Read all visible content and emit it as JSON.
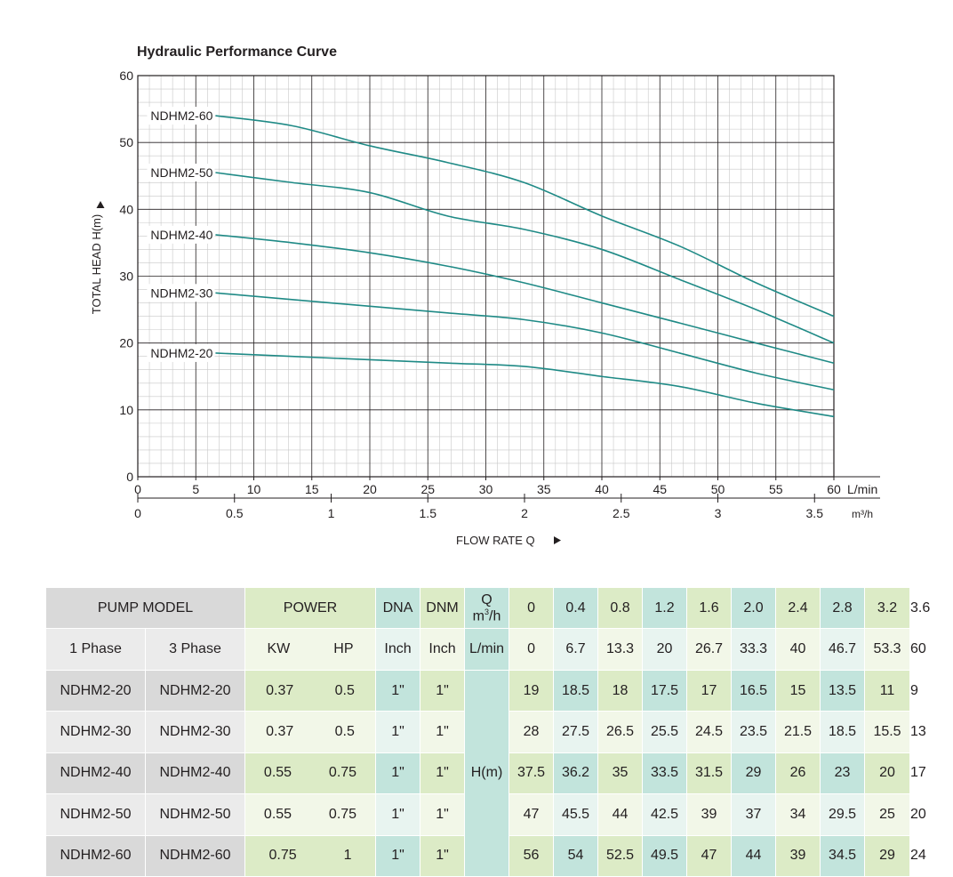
{
  "chart_data": {
    "type": "line",
    "title": "Hydraulic Performance Curve",
    "ylabel": "TOTAL HEAD H(m)",
    "xlabel": "FLOW RATE Q",
    "ylim": [
      0,
      60
    ],
    "xlim": [
      0,
      60
    ],
    "grid": true,
    "x_unit": "L/min",
    "x2_unit": "m³/h",
    "y_ticks": [
      "0",
      "10",
      "20",
      "30",
      "40",
      "50",
      "60"
    ],
    "x_ticks": [
      "0",
      "5",
      "10",
      "15",
      "20",
      "25",
      "30",
      "35",
      "40",
      "45",
      "50",
      "55",
      "60"
    ],
    "x2_ticks": [
      "0",
      "0.5",
      "1",
      "1.5",
      "2",
      "2.5",
      "3",
      "3.5"
    ],
    "x": [
      0,
      6.7,
      13.3,
      20,
      26.7,
      33.3,
      40,
      46.7,
      53.3,
      60
    ],
    "series": [
      {
        "name": "NDHM2-60",
        "values": [
          56,
          54,
          52.5,
          49.5,
          47,
          44,
          39,
          34.5,
          29,
          24
        ]
      },
      {
        "name": "NDHM2-50",
        "values": [
          47,
          45.5,
          44,
          42.5,
          39,
          37,
          34,
          29.5,
          25,
          20
        ]
      },
      {
        "name": "NDHM2-40",
        "values": [
          37.5,
          36.2,
          35,
          33.5,
          31.5,
          29,
          26,
          23,
          20,
          17
        ]
      },
      {
        "name": "NDHM2-30",
        "values": [
          28,
          27.5,
          26.5,
          25.5,
          24.5,
          23.5,
          21.5,
          18.5,
          15.5,
          13
        ]
      },
      {
        "name": "NDHM2-20",
        "values": [
          19,
          18.5,
          18,
          17.5,
          17,
          16.5,
          15,
          13.5,
          11,
          9
        ]
      }
    ],
    "line_color": "#1f8a86"
  },
  "table": {
    "pump_model": "PUMP MODEL",
    "power": "POWER",
    "dna": "DNA",
    "dnm": "DNM",
    "q_label": "Q",
    "q_unit_base": "m",
    "q_unit_sup": "3",
    "q_unit_end": "/h",
    "phase1": "1 Phase",
    "phase3": "3 Phase",
    "kw": "KW",
    "hp": "HP",
    "inch": "Inch",
    "lmin": "L/min",
    "hm": "H(m)",
    "q_m3h": [
      "0",
      "0.4",
      "0.8",
      "1.2",
      "1.6",
      "2.0",
      "2.4",
      "2.8",
      "3.2",
      "3.6"
    ],
    "q_lmin": [
      "0",
      "6.7",
      "13.3",
      "20",
      "26.7",
      "33.3",
      "40",
      "46.7",
      "53.3",
      "60"
    ],
    "rows": [
      {
        "m1": "NDHM2-20",
        "m3": "NDHM2-20",
        "kw": "0.37",
        "hp": "0.5",
        "dna": "1\"",
        "dnm": "1\"",
        "h": [
          "19",
          "18.5",
          "18",
          "17.5",
          "17",
          "16.5",
          "15",
          "13.5",
          "11",
          "9"
        ]
      },
      {
        "m1": "NDHM2-30",
        "m3": "NDHM2-30",
        "kw": "0.37",
        "hp": "0.5",
        "dna": "1\"",
        "dnm": "1\"",
        "h": [
          "28",
          "27.5",
          "26.5",
          "25.5",
          "24.5",
          "23.5",
          "21.5",
          "18.5",
          "15.5",
          "13"
        ]
      },
      {
        "m1": "NDHM2-40",
        "m3": "NDHM2-40",
        "kw": "0.55",
        "hp": "0.75",
        "dna": "1\"",
        "dnm": "1\"",
        "h": [
          "37.5",
          "36.2",
          "35",
          "33.5",
          "31.5",
          "29",
          "26",
          "23",
          "20",
          "17"
        ]
      },
      {
        "m1": "NDHM2-50",
        "m3": "NDHM2-50",
        "kw": "0.55",
        "hp": "0.75",
        "dna": "1\"",
        "dnm": "1\"",
        "h": [
          "47",
          "45.5",
          "44",
          "42.5",
          "39",
          "37",
          "34",
          "29.5",
          "25",
          "20"
        ]
      },
      {
        "m1": "NDHM2-60",
        "m3": "NDHM2-60",
        "kw": "0.75",
        "hp": "1",
        "dna": "1\"",
        "dnm": "1\"",
        "h": [
          "56",
          "54",
          "52.5",
          "49.5",
          "47",
          "44",
          "39",
          "34.5",
          "29",
          "24"
        ]
      }
    ]
  }
}
